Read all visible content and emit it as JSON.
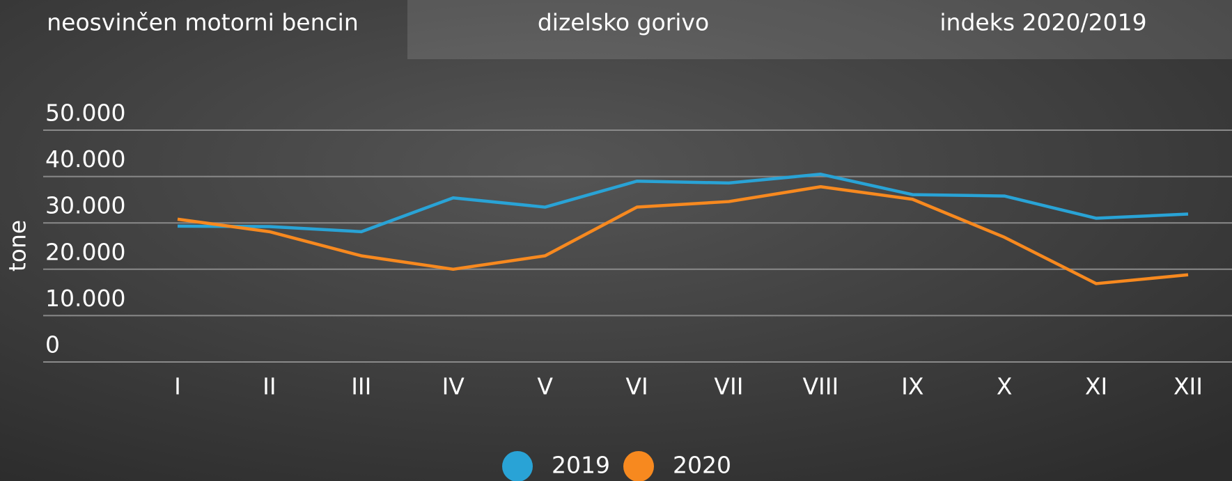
{
  "tabs": [
    "neosvinčen motorni bencin",
    "dizelsko gorivo",
    "indeks 2020/2019"
  ],
  "chart_data": {
    "type": "line",
    "ylabel": "tone",
    "categories": [
      "I",
      "II",
      "III",
      "IV",
      "V",
      "VI",
      "VII",
      "VIII",
      "IX",
      "X",
      "XI",
      "XII"
    ],
    "series": [
      {
        "name": "2019",
        "color": "#29a3d6",
        "values": [
          29300,
          29200,
          28100,
          35400,
          33400,
          39000,
          38600,
          40500,
          36100,
          35800,
          31000,
          31900
        ]
      },
      {
        "name": "2020",
        "color": "#f7891f",
        "values": [
          30800,
          28100,
          22900,
          20000,
          22900,
          33400,
          34600,
          37800,
          35100,
          26900,
          16900,
          18800
        ]
      }
    ],
    "ylim": [
      0,
      50000
    ],
    "yticks": [
      0,
      {
        "value": 10000,
        "label": "10.000"
      },
      {
        "value": 20000,
        "label": "20.000"
      },
      {
        "value": 30000,
        "label": "30.000"
      },
      {
        "value": 40000,
        "label": "40.000"
      },
      {
        "value": 50000,
        "label": "50.000"
      }
    ],
    "grid": true,
    "legend": "bottom"
  }
}
